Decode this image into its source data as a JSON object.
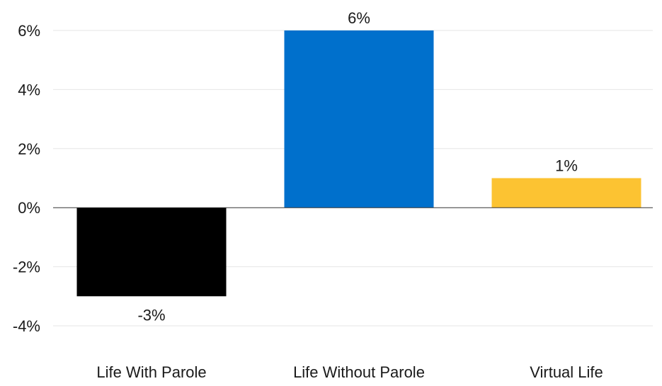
{
  "chart_data": {
    "type": "bar",
    "categories": [
      "Life With Parole",
      "Life Without Parole",
      "Virtual Life"
    ],
    "values": [
      -3,
      6,
      1
    ],
    "value_labels": [
      "-3%",
      "6%",
      "1%"
    ],
    "colors": [
      "#000000",
      "#0070CC",
      "#FCC332"
    ],
    "ylim": [
      -4,
      6
    ],
    "yticks": [
      6,
      4,
      2,
      0,
      -2,
      -4
    ],
    "ytick_labels": [
      "6%",
      "4%",
      "2%",
      "0%",
      "-2%",
      "-4%"
    ],
    "grid": true,
    "title": "",
    "xlabel": "",
    "ylabel": ""
  }
}
